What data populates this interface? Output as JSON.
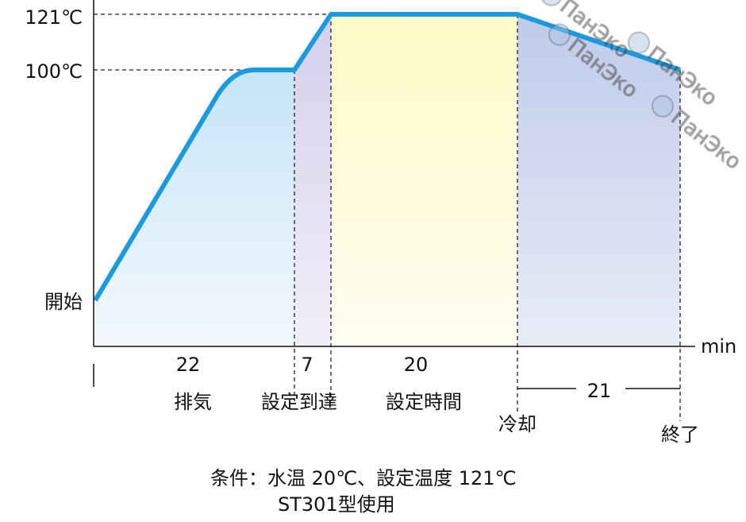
{
  "chart_data": {
    "type": "line",
    "title": "",
    "xlabel": "min",
    "ylabel": "",
    "y_tick_labels": [
      "121℃",
      "100℃",
      "開始"
    ],
    "series": [
      {
        "points": [
          {
            "t": 0,
            "temp_label": "開始"
          },
          {
            "t": 22,
            "temp": 100
          },
          {
            "t": 29,
            "temp": 121
          },
          {
            "t": 49,
            "temp": 121
          },
          {
            "t": 70,
            "temp": 100
          }
        ]
      }
    ],
    "phases": [
      {
        "label": "排気",
        "duration": "22",
        "color": "#c6e4f8"
      },
      {
        "label": "設定到達",
        "duration": "7",
        "color": "#d8d3ee"
      },
      {
        "label": "設定時間",
        "duration": "20",
        "color": "#fffbcc"
      },
      {
        "label": "冷却",
        "duration": "21",
        "color": "#c3cdeb"
      }
    ],
    "end_label": "終了",
    "line_color": "#1a9be0",
    "notes": [
      "条件：水温 20℃、設定温度 121℃",
      "ST301型使用"
    ],
    "watermark": "ПанЭко"
  }
}
